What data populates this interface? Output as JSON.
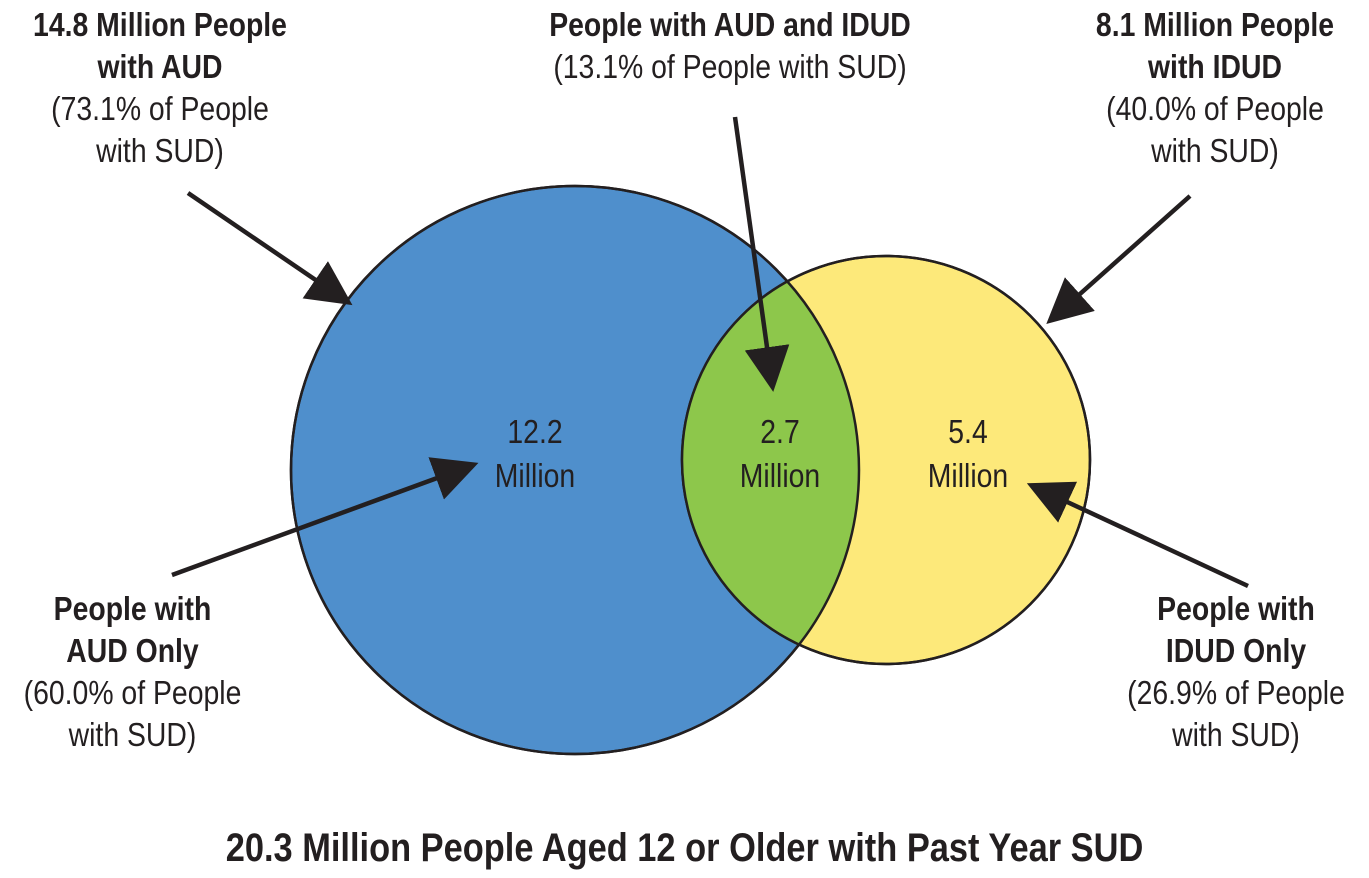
{
  "colors": {
    "aud_circle": "#4f8fcc",
    "idud_circle": "#fde97a",
    "overlap": "#8dc74b",
    "stroke": "#231f20"
  },
  "aud_total": {
    "line1": "14.8 Million People",
    "line2": "with AUD",
    "line3": "(73.1% of People",
    "line4": "with SUD)"
  },
  "both": {
    "line1": "People with AUD and IDUD",
    "line2": "(13.1% of People with SUD)"
  },
  "idud_total": {
    "line1": "8.1 Million People",
    "line2": "with IDUD",
    "line3": "(40.0% of People",
    "line4": "with SUD)"
  },
  "aud_only": {
    "line1": "People with",
    "line2": "AUD Only",
    "line3": "(60.0% of People",
    "line4": "with SUD)"
  },
  "idud_only": {
    "line1": "People with",
    "line2": "IDUD Only",
    "line3": "(26.9% of People",
    "line4": "with SUD)"
  },
  "regions": {
    "aud_only": {
      "value": "12.2",
      "unit": "Million"
    },
    "both": {
      "value": "2.7",
      "unit": "Million"
    },
    "idud_only": {
      "value": "5.4",
      "unit": "Million"
    }
  },
  "footer": "20.3 Million People Aged 12 or Older with Past Year SUD"
}
